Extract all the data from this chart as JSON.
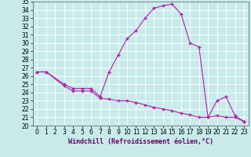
{
  "title": "",
  "xlabel": "Windchill (Refroidissement éolien,°C)",
  "ylabel": "",
  "background_color": "#c8eaea",
  "line_color": "#aa22aa",
  "grid_color": "#ffffff",
  "xlim": [
    -0.5,
    23.5
  ],
  "ylim": [
    20,
    35
  ],
  "yticks": [
    20,
    21,
    22,
    23,
    24,
    25,
    26,
    27,
    28,
    29,
    30,
    31,
    32,
    33,
    34,
    35
  ],
  "xticks": [
    0,
    1,
    2,
    3,
    4,
    5,
    6,
    7,
    8,
    9,
    10,
    11,
    12,
    13,
    14,
    15,
    16,
    17,
    18,
    19,
    20,
    21,
    22,
    23
  ],
  "series1_x": [
    0,
    1,
    3,
    4,
    5,
    6,
    7,
    8,
    9,
    10,
    11,
    12,
    13,
    14,
    15,
    16,
    17,
    18,
    19,
    20,
    21,
    22,
    23
  ],
  "series1_y": [
    26.5,
    26.5,
    25.0,
    24.5,
    24.5,
    24.5,
    23.5,
    26.5,
    28.5,
    30.5,
    31.5,
    33.0,
    34.2,
    34.5,
    34.7,
    33.5,
    30.0,
    29.5,
    21.0,
    23.0,
    23.5,
    21.2,
    20.5
  ],
  "series2_x": [
    0,
    1,
    3,
    4,
    5,
    6,
    7,
    8,
    9,
    10,
    11,
    12,
    13,
    14,
    15,
    16,
    17,
    18,
    19,
    20,
    21,
    22,
    23
  ],
  "series2_y": [
    26.5,
    26.5,
    24.8,
    24.2,
    24.2,
    24.2,
    23.3,
    23.2,
    23.0,
    23.0,
    22.8,
    22.5,
    22.2,
    22.0,
    21.8,
    21.5,
    21.3,
    21.0,
    21.0,
    21.2,
    21.0,
    21.0,
    20.5
  ],
  "marker": "+",
  "markersize": 3,
  "linewidth": 0.8,
  "tick_fontsize": 5.5,
  "xlabel_fontsize": 6.0
}
